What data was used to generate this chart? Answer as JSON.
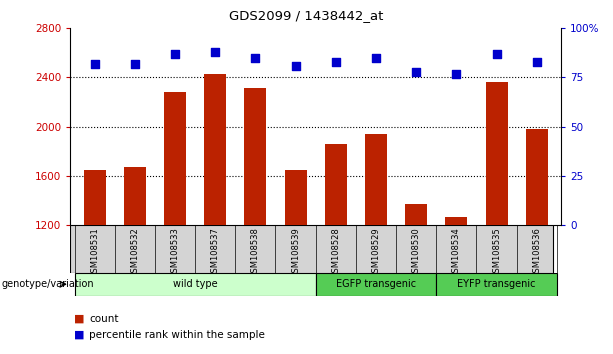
{
  "title": "GDS2099 / 1438442_at",
  "samples": [
    "GSM108531",
    "GSM108532",
    "GSM108533",
    "GSM108537",
    "GSM108538",
    "GSM108539",
    "GSM108528",
    "GSM108529",
    "GSM108530",
    "GSM108534",
    "GSM108535",
    "GSM108536"
  ],
  "counts": [
    1650,
    1670,
    2280,
    2430,
    2310,
    1645,
    1860,
    1940,
    1370,
    1265,
    2360,
    1980
  ],
  "percentiles": [
    82,
    82,
    87,
    88,
    85,
    81,
    83,
    85,
    78,
    77,
    87,
    83
  ],
  "ylim_left": [
    1200,
    2800
  ],
  "ylim_right": [
    0,
    100
  ],
  "yticks_left": [
    1200,
    1600,
    2000,
    2400,
    2800
  ],
  "yticks_right": [
    0,
    25,
    50,
    75,
    100
  ],
  "groups": [
    {
      "label": "wild type",
      "start": 0,
      "end": 6,
      "color": "#ccffcc"
    },
    {
      "label": "EGFP transgenic",
      "start": 6,
      "end": 9,
      "color": "#55cc55"
    },
    {
      "label": "EYFP transgenic",
      "start": 9,
      "end": 12,
      "color": "#55cc55"
    }
  ],
  "bar_color": "#bb2200",
  "dot_color": "#0000cc",
  "tick_label_color_left": "#cc0000",
  "tick_label_color_right": "#0000cc",
  "bg_color": "#ffffff",
  "sample_bg_color": "#d4d4d4",
  "bar_width": 0.55,
  "dot_size": 28,
  "genotype_label": "genotype/variation"
}
